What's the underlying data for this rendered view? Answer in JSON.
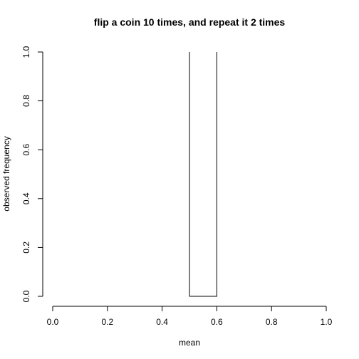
{
  "chart_data": {
    "type": "line",
    "title": "flip a coin 10 times, and repeat it 2 times",
    "xlabel": "mean",
    "ylabel": "observed frequency",
    "xlim": [
      0.0,
      1.0
    ],
    "ylim": [
      0.0,
      1.0
    ],
    "x_ticks": [
      "0.0",
      "0.2",
      "0.4",
      "0.6",
      "0.8",
      "1.0"
    ],
    "y_ticks": [
      "0.0",
      "0.2",
      "0.4",
      "0.6",
      "0.8",
      "1.0"
    ],
    "grid": false,
    "series": [
      {
        "x": [
          0.5,
          0.5,
          0.6,
          0.6
        ],
        "y": [
          1.0,
          0.0,
          0.0,
          1.0
        ]
      }
    ],
    "colors": {
      "line": "#000000"
    }
  }
}
